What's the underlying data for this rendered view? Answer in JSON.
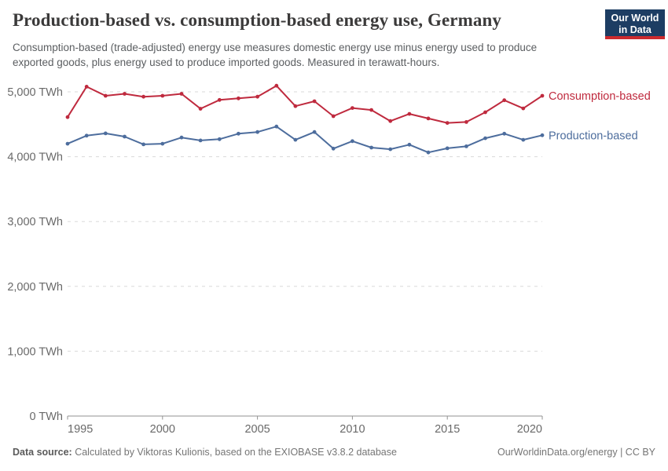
{
  "header": {
    "title": "Production-based vs. consumption-based energy use, Germany",
    "subtitle": "Consumption-based (trade-adjusted) energy use measures domestic energy use minus energy used to produce exported goods, plus energy used to produce imported goods. Measured in terawatt-hours."
  },
  "logo": {
    "line1": "Our World",
    "line2": "in Data",
    "bg_color": "#1d3d63",
    "stripe_color": "#cc2a2e"
  },
  "chart_data": {
    "type": "line",
    "title": "Production-based vs. consumption-based energy use, Germany",
    "unit": "TWh",
    "x": [
      1995,
      1996,
      1997,
      1998,
      1999,
      2000,
      2001,
      2002,
      2003,
      2004,
      2005,
      2006,
      2007,
      2008,
      2009,
      2010,
      2011,
      2012,
      2013,
      2014,
      2015,
      2016,
      2017,
      2018,
      2019,
      2020
    ],
    "series": [
      {
        "name": "Consumption-based",
        "color": "#bf2a3e",
        "values": [
          4610,
          5080,
          4940,
          4970,
          4925,
          4940,
          4970,
          4740,
          4875,
          4900,
          4925,
          5095,
          4780,
          4855,
          4625,
          4750,
          4720,
          4550,
          4660,
          4590,
          4520,
          4535,
          4685,
          4870,
          4745,
          4940
        ]
      },
      {
        "name": "Production-based",
        "color": "#4d6d9d",
        "values": [
          4200,
          4325,
          4360,
          4310,
          4190,
          4200,
          4295,
          4250,
          4270,
          4355,
          4380,
          4465,
          4260,
          4380,
          4125,
          4240,
          4140,
          4115,
          4185,
          4065,
          4130,
          4160,
          4285,
          4355,
          4260,
          4330
        ]
      }
    ],
    "xlim": [
      1995,
      2020
    ],
    "ylim": [
      0,
      5000
    ],
    "yticks": [
      {
        "value": 0,
        "label": "0 TWh"
      },
      {
        "value": 1000,
        "label": "1,000 TWh"
      },
      {
        "value": 2000,
        "label": "2,000 TWh"
      },
      {
        "value": 3000,
        "label": "3,000 TWh"
      },
      {
        "value": 4000,
        "label": "4,000 TWh"
      },
      {
        "value": 5000,
        "label": "5,000 TWh"
      }
    ],
    "xticks": [
      {
        "value": 1995,
        "label": "1995",
        "align": "start"
      },
      {
        "value": 2000,
        "label": "2000",
        "align": "middle"
      },
      {
        "value": 2005,
        "label": "2005",
        "align": "middle"
      },
      {
        "value": 2010,
        "label": "2010",
        "align": "middle"
      },
      {
        "value": 2015,
        "label": "2015",
        "align": "middle"
      },
      {
        "value": 2020,
        "label": "2020",
        "align": "end"
      }
    ],
    "grid": "horizontal-dashed",
    "legend": "end-of-line-labels",
    "colors": {
      "gridline": "#dadada",
      "axis": "#929292",
      "tick_label": "#696969"
    }
  },
  "footer": {
    "source_prefix": "Data source:",
    "source_text": " Calculated by Viktoras Kulionis, based on the EXIOBASE v3.8.2 database",
    "url_label": "OurWorldinData.org/energy",
    "divider": " | ",
    "license_label": "CC BY"
  }
}
